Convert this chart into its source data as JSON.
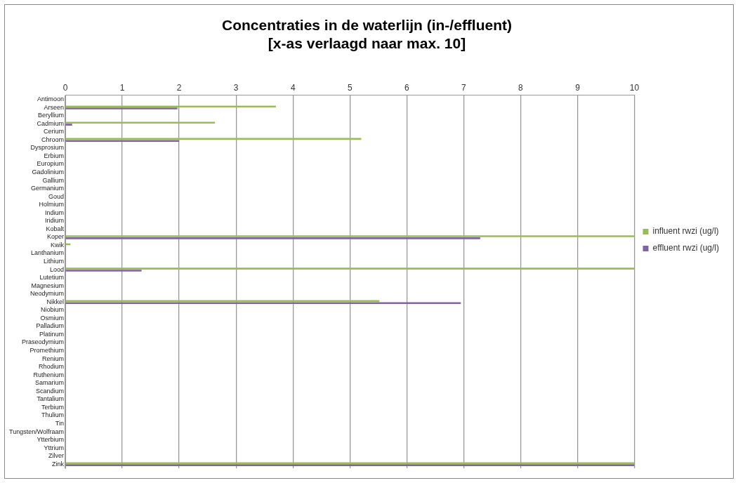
{
  "chart_data": {
    "type": "bar",
    "orientation": "horizontal",
    "title": "Concentraties in de waterlijn (in-/effluent)\n[x-as verlaagd naar max. 10]",
    "categories": [
      "Antimoon",
      "Arseen",
      "Beryllium",
      "Cadmium",
      "Cerium",
      "Chroom",
      "Dysprosium",
      "Erbium",
      "Europium",
      "Gadolinium",
      "Gallium",
      "Germanium",
      "Goud",
      "Holmium",
      "Indium",
      "Iridium",
      "Kobalt",
      "Koper",
      "Kwik",
      "Lanthanium",
      "Lithium",
      "Lood",
      "Lutetium",
      "Magnesium",
      "Neodymium",
      "Nikkel",
      "Niobium",
      "Osmium",
      "Palladium",
      "Platinum",
      "Praseodymium",
      "Promethium",
      "Renium",
      "Rhodium",
      "Ruthenium",
      "Samarium",
      "Scandium",
      "Tantalium",
      "Terbium",
      "Thulium",
      "Tin",
      "Tungsten/Wolfraam",
      "Ytterbium",
      "Yttrium",
      "Zilver",
      "Zink"
    ],
    "series": [
      {
        "name": "influent rwzi (ug/l)",
        "color": "#9bbb59",
        "values": [
          null,
          3.7,
          null,
          2.63,
          null,
          5.2,
          null,
          null,
          null,
          null,
          null,
          null,
          null,
          null,
          null,
          null,
          null,
          10,
          0.09,
          null,
          null,
          10,
          null,
          null,
          null,
          5.52,
          null,
          null,
          null,
          null,
          null,
          null,
          null,
          null,
          null,
          null,
          null,
          null,
          null,
          null,
          null,
          null,
          null,
          null,
          null,
          10
        ]
      },
      {
        "name": "effluent rwzi (ug/l)",
        "color": "#8064a2",
        "values": [
          null,
          1.97,
          null,
          0.12,
          null,
          2.0,
          null,
          null,
          null,
          null,
          null,
          null,
          null,
          null,
          null,
          null,
          null,
          7.29,
          null,
          null,
          null,
          1.34,
          null,
          null,
          null,
          6.95,
          null,
          null,
          null,
          null,
          null,
          null,
          null,
          null,
          null,
          null,
          null,
          null,
          null,
          null,
          null,
          null,
          null,
          null,
          null,
          10
        ]
      }
    ],
    "xlim": [
      0,
      10
    ],
    "xticks": [
      0,
      1,
      2,
      3,
      4,
      5,
      6,
      7,
      8,
      9,
      10
    ],
    "grid": "x",
    "legend": "right"
  }
}
